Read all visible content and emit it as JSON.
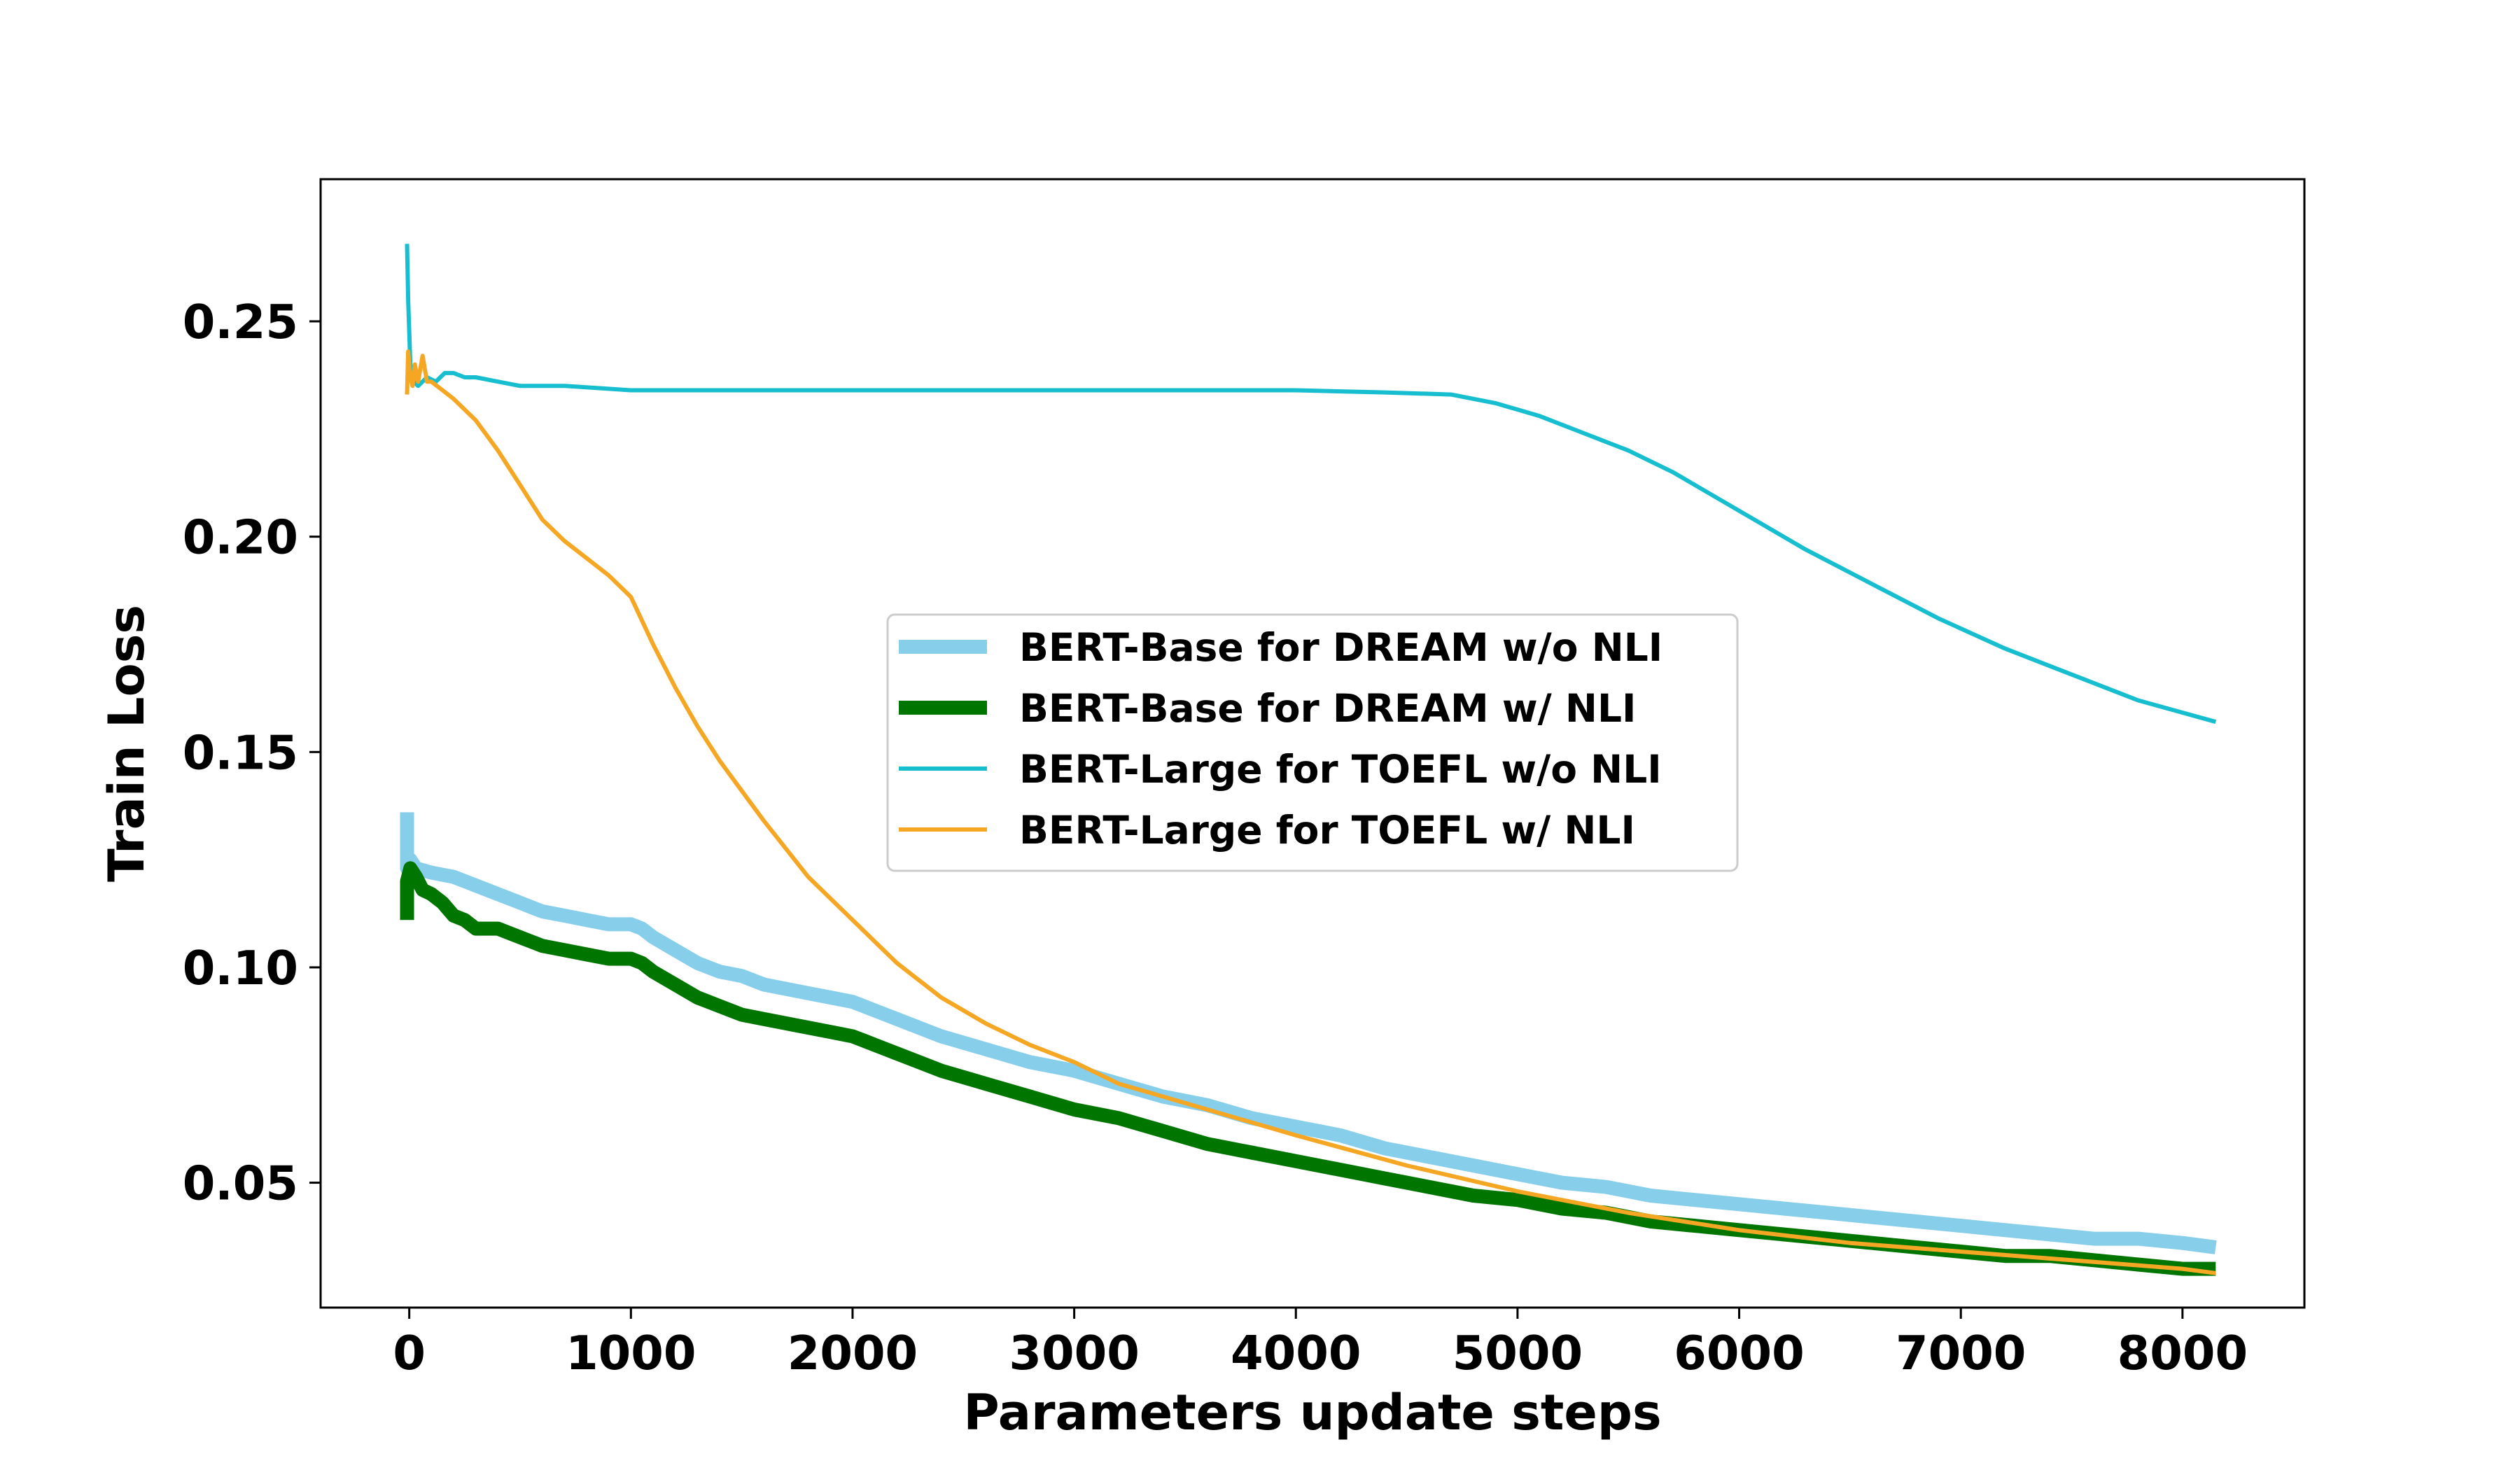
{
  "chart_data": {
    "type": "line",
    "title": "",
    "xlabel": "Parameters update steps",
    "ylabel": "Train Loss",
    "xlim": [
      -400,
      8550
    ],
    "ylim": [
      0.021,
      0.283
    ],
    "xticks": [
      0,
      1000,
      2000,
      3000,
      4000,
      5000,
      6000,
      7000,
      8000
    ],
    "xtick_labels": [
      "0",
      "1000",
      "2000",
      "3000",
      "4000",
      "5000",
      "6000",
      "7000",
      "8000"
    ],
    "yticks": [
      0.05,
      0.1,
      0.15,
      0.2,
      0.25
    ],
    "ytick_labels": [
      "0.05",
      "0.10",
      "0.15",
      "0.20",
      "0.25"
    ],
    "grid": false,
    "legend_position": "center",
    "series": [
      {
        "name": "BERT-Base for DREAM w/o NLI",
        "color": "#87ceeb",
        "style": "thick",
        "x": [
          -10,
          -10,
          5,
          30,
          100,
          200,
          300,
          400,
          500,
          600,
          700,
          800,
          900,
          1000,
          1050,
          1100,
          1200,
          1300,
          1400,
          1500,
          1600,
          1700,
          1800,
          1900,
          2000,
          2050,
          2100,
          2200,
          2400,
          2600,
          2800,
          3000,
          3200,
          3400,
          3600,
          3800,
          4000,
          4200,
          4400,
          4600,
          4800,
          5000,
          5200,
          5400,
          5600,
          5800,
          6000,
          6200,
          6400,
          6600,
          6800,
          7000,
          7200,
          7400,
          7600,
          7800,
          8000,
          8150
        ],
        "y": [
          0.136,
          0.123,
          0.125,
          0.123,
          0.122,
          0.121,
          0.119,
          0.117,
          0.115,
          0.113,
          0.112,
          0.111,
          0.11,
          0.11,
          0.109,
          0.107,
          0.104,
          0.101,
          0.099,
          0.098,
          0.096,
          0.095,
          0.094,
          0.093,
          0.092,
          0.091,
          0.09,
          0.088,
          0.084,
          0.081,
          0.078,
          0.076,
          0.073,
          0.07,
          0.068,
          0.065,
          0.063,
          0.061,
          0.058,
          0.056,
          0.054,
          0.052,
          0.05,
          0.049,
          0.047,
          0.046,
          0.045,
          0.044,
          0.043,
          0.042,
          0.041,
          0.04,
          0.039,
          0.038,
          0.037,
          0.037,
          0.036,
          0.035
        ]
      },
      {
        "name": "BERT-Base for DREAM w/ NLI",
        "color": "#007500",
        "style": "thick",
        "x": [
          -10,
          -10,
          5,
          30,
          60,
          100,
          150,
          200,
          250,
          300,
          400,
          500,
          600,
          700,
          800,
          900,
          1000,
          1050,
          1100,
          1200,
          1300,
          1400,
          1500,
          1600,
          1700,
          1800,
          1900,
          2000,
          2050,
          2100,
          2200,
          2400,
          2600,
          2800,
          3000,
          3200,
          3400,
          3600,
          3800,
          4000,
          4200,
          4400,
          4600,
          4800,
          5000,
          5200,
          5400,
          5600,
          5800,
          6000,
          6200,
          6400,
          6600,
          6800,
          7000,
          7200,
          7400,
          7600,
          7800,
          8000,
          8150
        ],
        "y": [
          0.111,
          0.12,
          0.123,
          0.121,
          0.118,
          0.117,
          0.115,
          0.112,
          0.111,
          0.109,
          0.109,
          0.107,
          0.105,
          0.104,
          0.103,
          0.102,
          0.102,
          0.101,
          0.099,
          0.096,
          0.093,
          0.091,
          0.089,
          0.088,
          0.087,
          0.086,
          0.085,
          0.084,
          0.083,
          0.082,
          0.08,
          0.076,
          0.073,
          0.07,
          0.067,
          0.065,
          0.062,
          0.059,
          0.057,
          0.055,
          0.053,
          0.051,
          0.049,
          0.047,
          0.046,
          0.044,
          0.043,
          0.041,
          0.04,
          0.039,
          0.038,
          0.037,
          0.036,
          0.035,
          0.034,
          0.033,
          0.033,
          0.032,
          0.031,
          0.03,
          0.03
        ]
      },
      {
        "name": "BERT-Large for TOEFL w/o NLI",
        "color": "#17becf",
        "style": "thin",
        "x": [
          -10,
          -5,
          5,
          20,
          40,
          80,
          120,
          160,
          200,
          250,
          300,
          400,
          500,
          700,
          1000,
          1500,
          2000,
          2500,
          3000,
          3500,
          4000,
          4400,
          4700,
          4900,
          5100,
          5300,
          5500,
          5700,
          5900,
          6100,
          6300,
          6600,
          6900,
          7200,
          7500,
          7800,
          8150
        ],
        "y": [
          0.268,
          0.255,
          0.24,
          0.236,
          0.235,
          0.237,
          0.236,
          0.238,
          0.238,
          0.237,
          0.237,
          0.236,
          0.235,
          0.235,
          0.234,
          0.234,
          0.234,
          0.234,
          0.234,
          0.234,
          0.234,
          0.2335,
          0.233,
          0.231,
          0.228,
          0.224,
          0.22,
          0.215,
          0.209,
          0.203,
          0.197,
          0.189,
          0.181,
          0.174,
          0.168,
          0.162,
          0.157
        ]
      },
      {
        "name": "BERT-Large for TOEFL w/ NLI",
        "color": "#f5a623",
        "style": "thin",
        "x": [
          -10,
          -5,
          5,
          15,
          25,
          40,
          60,
          80,
          100,
          150,
          200,
          300,
          400,
          500,
          600,
          700,
          800,
          900,
          1000,
          1100,
          1200,
          1300,
          1400,
          1500,
          1600,
          1800,
          2000,
          2200,
          2400,
          2600,
          2800,
          3000,
          3200,
          3400,
          3600,
          3800,
          4000,
          4500,
          5000,
          5500,
          6000,
          6500,
          7000,
          7500,
          8000,
          8150
        ],
        "y": [
          0.233,
          0.243,
          0.237,
          0.235,
          0.24,
          0.236,
          0.242,
          0.236,
          0.236,
          0.234,
          0.232,
          0.227,
          0.22,
          0.212,
          0.204,
          0.199,
          0.195,
          0.191,
          0.186,
          0.175,
          0.165,
          0.156,
          0.148,
          0.141,
          0.134,
          0.121,
          0.111,
          0.101,
          0.093,
          0.087,
          0.082,
          0.078,
          0.073,
          0.07,
          0.067,
          0.064,
          0.061,
          0.054,
          0.048,
          0.043,
          0.039,
          0.036,
          0.034,
          0.032,
          0.03,
          0.029
        ]
      }
    ]
  }
}
